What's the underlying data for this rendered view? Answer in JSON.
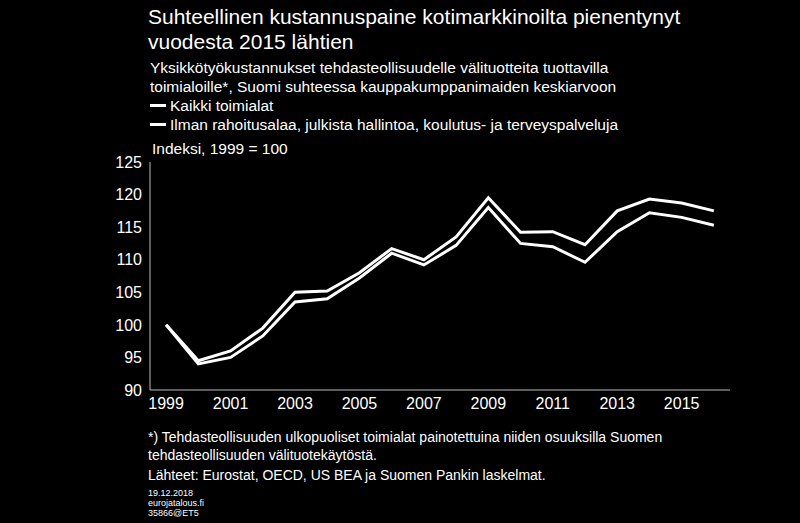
{
  "chart_data": {
    "type": "line",
    "title": "Suhteellinen kustannuspaine kotimarkkinoilta pienentynyt vuodesta 2015 lähtien",
    "subtitle": "Yksikkötyökustannukset tehdasteollisuudelle välituotteita tuottavilla toimialoille*, Suomi suhteessa kauppakumppanimaiden keskiarvoon",
    "ylabel": "Indeksi, 1999 = 100",
    "x": [
      1999,
      2000,
      2001,
      2002,
      2003,
      2004,
      2005,
      2006,
      2007,
      2008,
      2009,
      2010,
      2011,
      2012,
      2013,
      2014,
      2015,
      2016
    ],
    "series": [
      {
        "name": "Kaikki toimialat",
        "color": "#ffffff",
        "values": [
          100,
          94.5,
          96,
          99.5,
          105,
          105.2,
          108,
          111.7,
          110,
          113.5,
          119.5,
          114.2,
          114.3,
          112.3,
          117.5,
          119.3,
          118.7,
          117.5
        ]
      },
      {
        "name": "Ilman rahoitusalaa, julkista hallintoa, koulutus- ja terveyspalveluja",
        "color": "#ffffff",
        "values": [
          100,
          94,
          95,
          98.3,
          103.5,
          104,
          107.2,
          111,
          109.2,
          112.2,
          118,
          112.5,
          112,
          109.6,
          114.3,
          117.2,
          116.5,
          115.3
        ]
      }
    ],
    "xlim": [
      1998.5,
      2016.5
    ],
    "xticks": [
      1999,
      2001,
      2003,
      2005,
      2007,
      2009,
      2011,
      2013,
      2015
    ],
    "ylim": [
      90,
      125
    ],
    "yticks": [
      90,
      95,
      100,
      105,
      110,
      115,
      120,
      125
    ],
    "grid": false,
    "footnote": "*) Tehdasteollisuuden ulkopuoliset toimialat painotettuina niiden osuuksilla Suomen tehdasteollisuuden välituotekäytöstä.",
    "source": "Lähteet: Eurostat, OECD, US BEA ja Suomen Pankin laskelmat.",
    "footer": [
      "19.12.2018",
      "eurojatalous.fi",
      "35866@ET5"
    ]
  }
}
